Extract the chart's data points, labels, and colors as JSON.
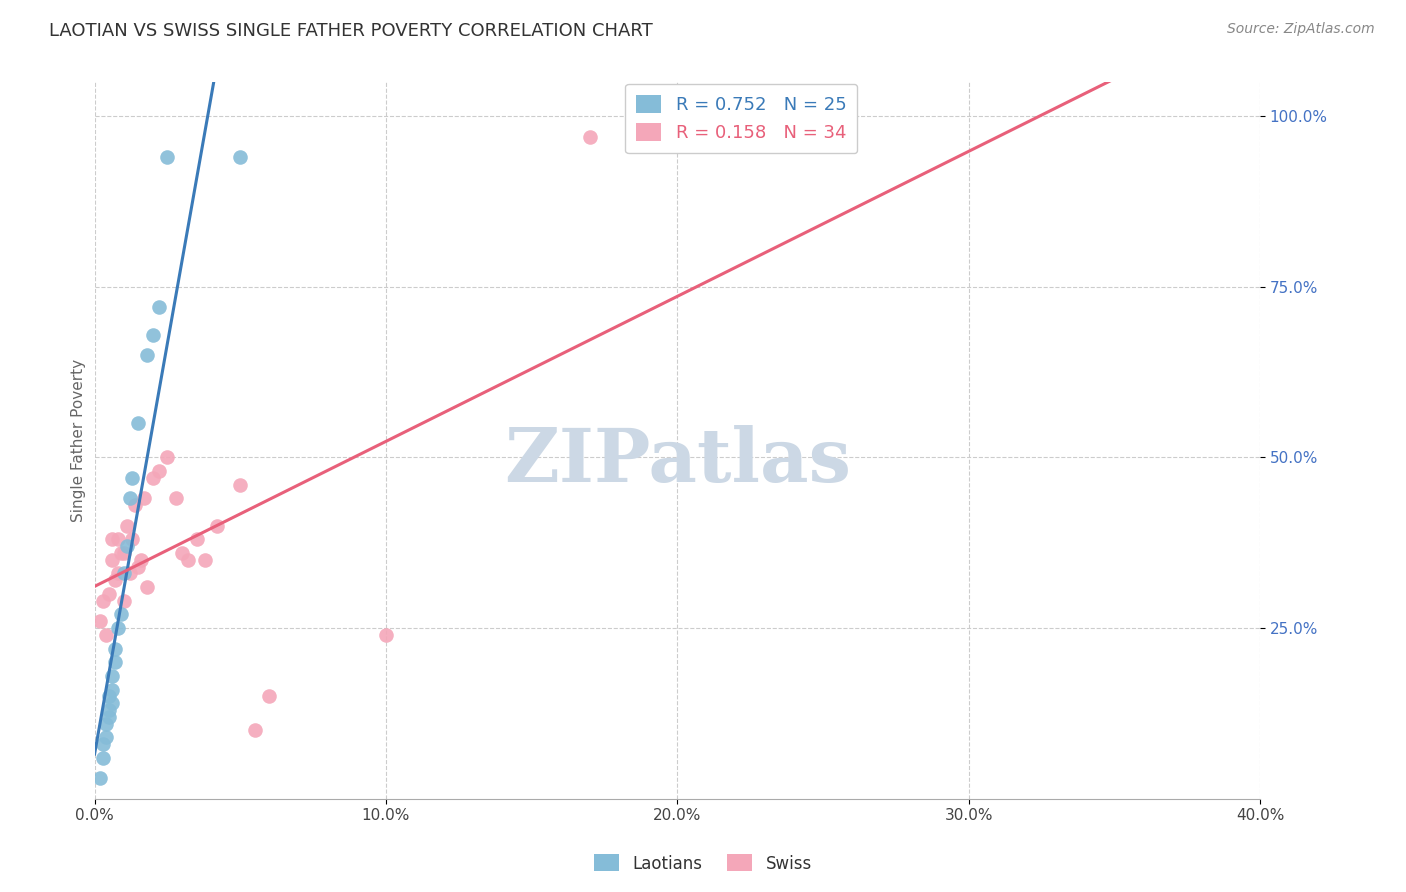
{
  "title": "LAOTIAN VS SWISS SINGLE FATHER POVERTY CORRELATION CHART",
  "source": "Source: ZipAtlas.com",
  "ylabel": "Single Father Poverty",
  "xlim": [
    0.0,
    0.4
  ],
  "ylim": [
    0.0,
    1.05
  ],
  "yticks": [
    0.25,
    0.5,
    0.75,
    1.0
  ],
  "xticks": [
    0.0,
    0.1,
    0.2,
    0.3,
    0.4
  ],
  "xtick_labels": [
    "0.0%",
    "10.0%",
    "20.0%",
    "30.0%",
    "40.0%"
  ],
  "ytick_labels": [
    "25.0%",
    "50.0%",
    "75.0%",
    "100.0%"
  ],
  "laotian_R": 0.752,
  "laotian_N": 25,
  "swiss_R": 0.158,
  "swiss_N": 34,
  "laotian_color": "#85bcd8",
  "swiss_color": "#f4a7b9",
  "laotian_line_color": "#3a7ab8",
  "swiss_line_color": "#e8607a",
  "laotian_x": [
    0.002,
    0.003,
    0.003,
    0.004,
    0.004,
    0.005,
    0.005,
    0.005,
    0.006,
    0.006,
    0.006,
    0.007,
    0.007,
    0.008,
    0.009,
    0.01,
    0.011,
    0.012,
    0.013,
    0.015,
    0.018,
    0.02,
    0.022,
    0.025,
    0.05
  ],
  "laotian_y": [
    0.03,
    0.06,
    0.08,
    0.09,
    0.11,
    0.12,
    0.13,
    0.15,
    0.14,
    0.16,
    0.18,
    0.2,
    0.22,
    0.25,
    0.27,
    0.33,
    0.37,
    0.44,
    0.47,
    0.55,
    0.65,
    0.68,
    0.72,
    0.94,
    0.94
  ],
  "swiss_x": [
    0.002,
    0.003,
    0.004,
    0.005,
    0.006,
    0.006,
    0.007,
    0.008,
    0.008,
    0.009,
    0.01,
    0.01,
    0.011,
    0.012,
    0.013,
    0.014,
    0.015,
    0.016,
    0.017,
    0.018,
    0.02,
    0.022,
    0.025,
    0.028,
    0.03,
    0.032,
    0.035,
    0.038,
    0.042,
    0.05,
    0.055,
    0.06,
    0.1,
    0.17
  ],
  "swiss_y": [
    0.26,
    0.29,
    0.24,
    0.3,
    0.35,
    0.38,
    0.32,
    0.33,
    0.38,
    0.36,
    0.29,
    0.36,
    0.4,
    0.33,
    0.38,
    0.43,
    0.34,
    0.35,
    0.44,
    0.31,
    0.47,
    0.48,
    0.5,
    0.44,
    0.36,
    0.35,
    0.38,
    0.35,
    0.4,
    0.46,
    0.1,
    0.15,
    0.24,
    0.97
  ],
  "background_color": "#ffffff",
  "grid_color": "#cccccc",
  "watermark_text": "ZIPatlas",
  "watermark_color": "#ccd8e5",
  "legend_laotian_label": "Laotians",
  "legend_swiss_label": "Swiss",
  "laotian_line_x0": 0.0,
  "laotian_line_x1": 0.05,
  "swiss_line_x0": 0.0,
  "swiss_line_x1": 0.4
}
